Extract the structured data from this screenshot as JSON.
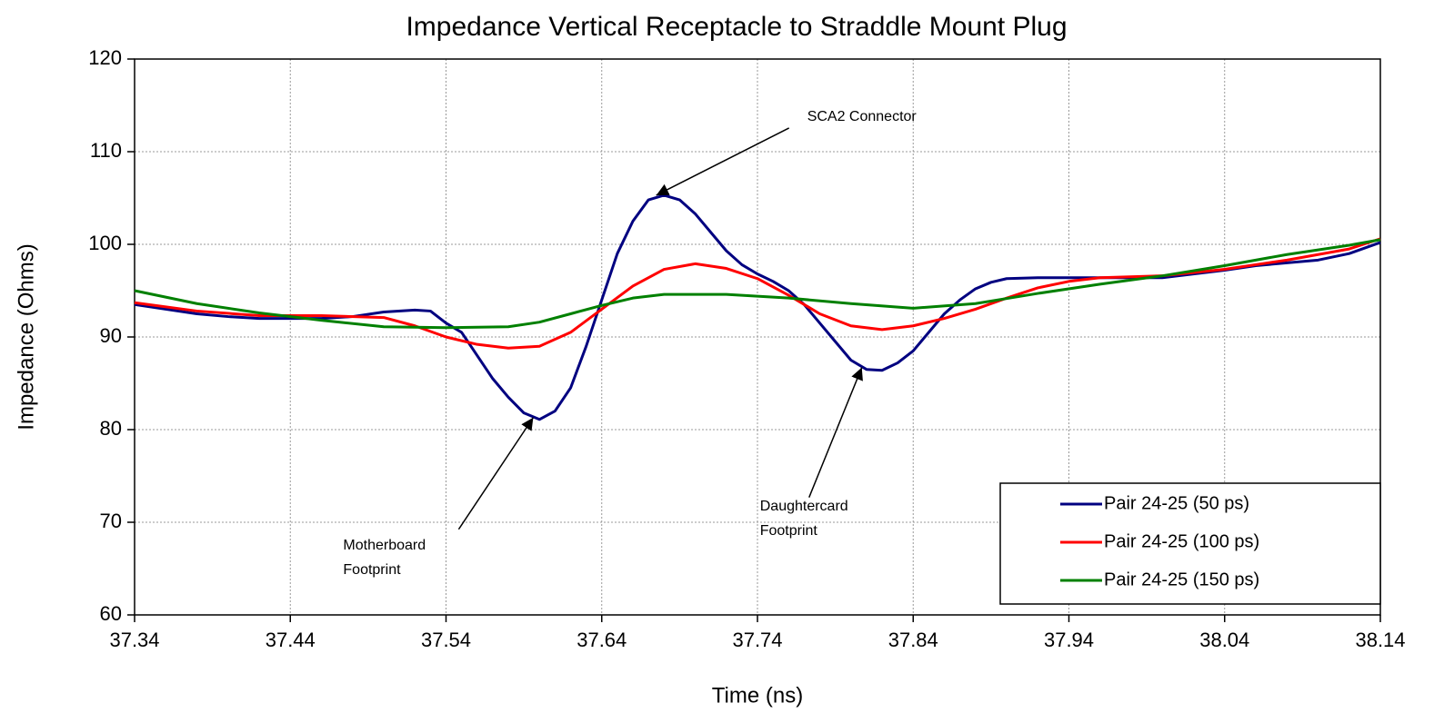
{
  "chart_data": {
    "type": "line",
    "title": "Impedance Vertical Receptacle to Straddle Mount Plug",
    "xlabel": "Time (ns)",
    "ylabel": "Impedance (Ohms)",
    "xlim": [
      37.34,
      38.14
    ],
    "xticks": [
      37.34,
      37.44,
      37.54,
      37.64,
      37.74,
      37.84,
      37.94,
      38.04,
      38.14
    ],
    "ylim": [
      60,
      120
    ],
    "yticks": [
      60,
      70,
      80,
      90,
      100,
      110,
      120
    ],
    "grid": true,
    "legend": "lower right",
    "series": [
      {
        "name": "Pair 24-25 (50 ps)",
        "color": "#000080",
        "x": [
          37.34,
          37.36,
          37.38,
          37.4,
          37.42,
          37.44,
          37.46,
          37.48,
          37.5,
          37.52,
          37.53,
          37.54,
          37.55,
          37.56,
          37.57,
          37.58,
          37.59,
          37.6,
          37.61,
          37.62,
          37.63,
          37.64,
          37.65,
          37.66,
          37.67,
          37.68,
          37.69,
          37.7,
          37.71,
          37.72,
          37.73,
          37.74,
          37.75,
          37.76,
          37.77,
          37.78,
          37.79,
          37.8,
          37.81,
          37.82,
          37.83,
          37.84,
          37.85,
          37.86,
          37.87,
          37.88,
          37.89,
          37.9,
          37.92,
          37.94,
          37.96,
          37.98,
          38.0,
          38.02,
          38.04,
          38.06,
          38.08,
          38.1,
          38.12,
          38.14
        ],
        "values": [
          93.5,
          93,
          92.5,
          92.2,
          92,
          92,
          92,
          92.2,
          92.7,
          92.9,
          92.8,
          91.5,
          90.5,
          88,
          85.5,
          83.5,
          81.8,
          81.1,
          82,
          84.5,
          89,
          94,
          99,
          102.5,
          104.8,
          105.3,
          104.8,
          103.3,
          101.3,
          99.3,
          97.8,
          96.8,
          96,
          95,
          93.5,
          91.5,
          89.5,
          87.5,
          86.5,
          86.4,
          87.2,
          88.5,
          90.5,
          92.5,
          94,
          95.2,
          95.9,
          96.3,
          96.4,
          96.4,
          96.4,
          96.4,
          96.4,
          96.8,
          97.2,
          97.7,
          98,
          98.3,
          99,
          100.2
        ]
      },
      {
        "name": "Pair 24-25 (100 ps)",
        "color": "#ff0000",
        "x": [
          37.34,
          37.38,
          37.42,
          37.46,
          37.5,
          37.52,
          37.54,
          37.56,
          37.58,
          37.6,
          37.62,
          37.64,
          37.66,
          37.68,
          37.7,
          37.72,
          37.74,
          37.76,
          37.78,
          37.8,
          37.82,
          37.84,
          37.86,
          37.88,
          37.9,
          37.92,
          37.94,
          37.96,
          38.0,
          38.04,
          38.08,
          38.12,
          38.14
        ],
        "values": [
          93.7,
          92.8,
          92.3,
          92.3,
          92.1,
          91.2,
          90,
          89.2,
          88.8,
          89.0,
          90.5,
          93,
          95.5,
          97.3,
          97.9,
          97.4,
          96.3,
          94.5,
          92.5,
          91.2,
          90.8,
          91.2,
          92,
          93,
          94.2,
          95.3,
          96,
          96.4,
          96.6,
          97.3,
          98.3,
          99.5,
          100.6
        ]
      },
      {
        "name": "Pair 24-25 (150 ps)",
        "color": "#008000",
        "x": [
          37.34,
          37.38,
          37.42,
          37.46,
          37.5,
          37.54,
          37.58,
          37.6,
          37.62,
          37.64,
          37.66,
          37.68,
          37.72,
          37.76,
          37.8,
          37.84,
          37.88,
          37.92,
          37.96,
          38.0,
          38.04,
          38.08,
          38.12,
          38.14
        ],
        "values": [
          95,
          93.6,
          92.6,
          91.8,
          91.1,
          91,
          91.1,
          91.6,
          92.5,
          93.4,
          94.2,
          94.6,
          94.6,
          94.2,
          93.6,
          93.1,
          93.6,
          94.7,
          95.7,
          96.6,
          97.7,
          98.9,
          99.9,
          100.5
        ]
      }
    ],
    "annotations": [
      {
        "lines": [
          "SCA2 Connector"
        ],
        "x": 37.675,
        "y": 105.3
      },
      {
        "lines": [
          "Motherboard",
          "Footprint"
        ],
        "x": 37.596,
        "y": 81.3
      },
      {
        "lines": [
          "Daughtercard",
          "Footprint"
        ],
        "x": 37.807,
        "y": 86.7
      }
    ]
  }
}
